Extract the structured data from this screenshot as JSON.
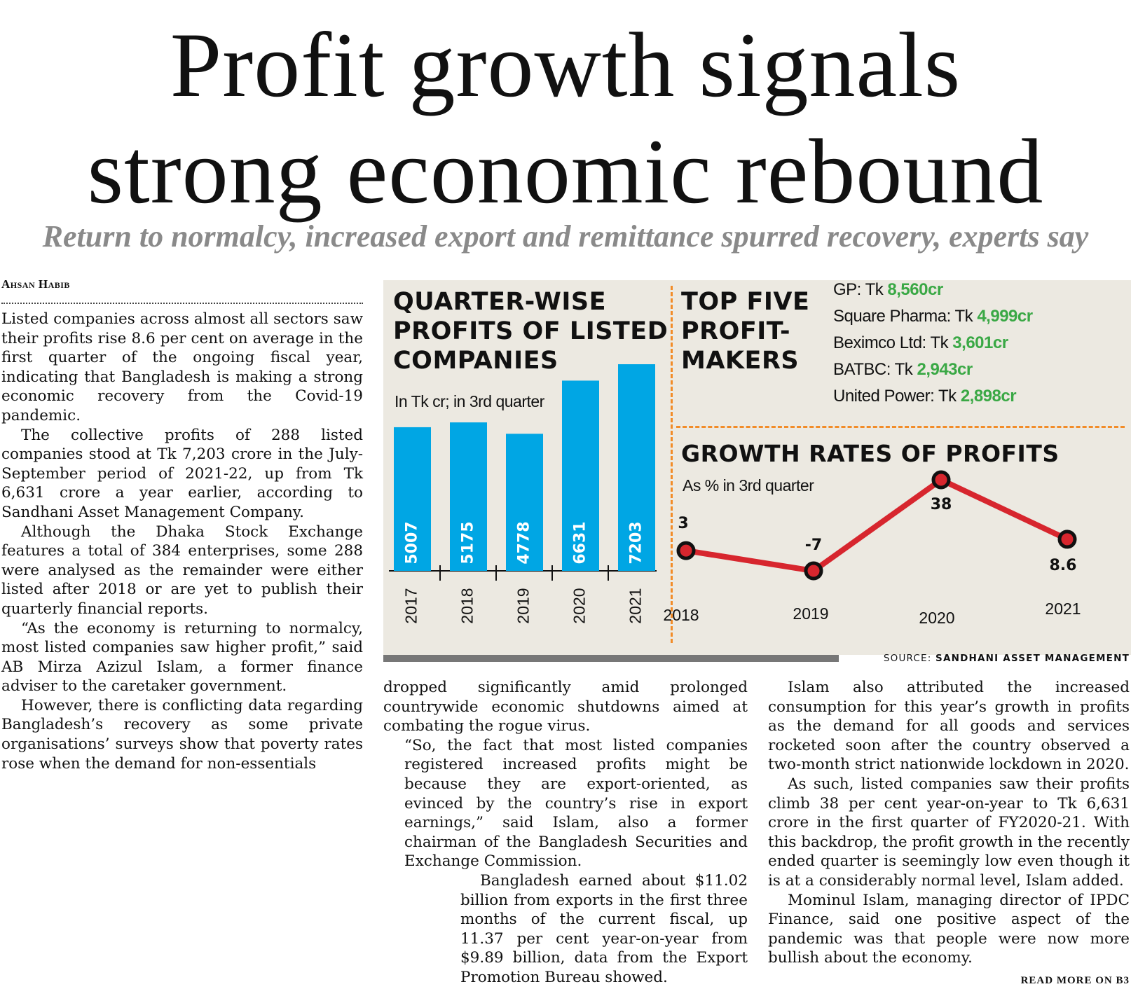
{
  "headline": {
    "line1": "Profit growth signals",
    "line2": "strong economic rebound",
    "deck": "Return to normalcy, increased export and remittance spurred recovery, experts say"
  },
  "byline": "Ahsan Habib",
  "body": {
    "col1": [
      "Listed companies across almost all sectors saw their profits rise 8.6 per cent on average in the first quarter of the ongoing fiscal year, indicating that Bangladesh is making a strong economic recovery from the Covid-19 pandemic.",
      "The collective profits of 288 listed companies stood at Tk 7,203 crore in the July-September period of 2021-22, up from Tk 6,631 crore a year earlier, according to Sandhani Asset Management Company.",
      "Although the Dhaka Stock Exchange features a total of 384 enterprises, some 288 were analysed as the remainder were either listed after 2018 or are yet to publish their quarterly financial reports.",
      "“As the economy is returning to normalcy, most listed companies saw higher profit,” said AB Mirza Azizul Islam, a former finance adviser to the caretaker government.",
      "However, there is conflicting data regarding Bangladesh’s recovery as some private organisations’ surveys show that poverty rates rose when the demand for non-essentials"
    ],
    "col2": [
      "dropped significantly amid prolonged countrywide economic shutdowns aimed at combating the rogue virus.",
      "“So, the fact that most listed companies registered increased profits might be because they are export-oriented, as evinced by the country’s rise in export earnings,” said Islam, also a former chairman of the Bangladesh Securities and Exchange Commission.",
      "Bangladesh earned about $11.02 billion from exports in the first three months of the current fiscal, up 11.37 per cent year-on-year from $9.89 billion, data from the Export Promotion Bureau showed."
    ],
    "col3": [
      "Islam also attributed the increased consumption for this year’s growth in profits as the demand for all goods and services rocketed soon after the country observed a two-month strict nationwide lockdown in 2020.",
      "As such, listed companies saw their profits climb 38 per cent year-on-year to Tk 6,631 crore in the first quarter of FY2020-21. With this backdrop, the profit growth in the recently ended quarter is seemingly low even though it is at a considerably normal level, Islam added.",
      "Mominul Islam, managing director of IPDC Finance, said one positive aspect of the pandemic was that people were now more bullish about the economy."
    ],
    "read_more": "READ MORE ON B3"
  },
  "infographic": {
    "quarter_title": "QUARTER-WISE PROFITS OF LISTED COMPANIES",
    "quarter_subtitle": "In Tk cr; in 3rd quarter",
    "top_title": "TOP FIVE PROFIT-MAKERS",
    "top_five": [
      {
        "label": "GP: Tk ",
        "value": "8,560cr"
      },
      {
        "label": "Square Pharma: Tk ",
        "value": "4,999cr"
      },
      {
        "label": "Beximco Ltd: Tk ",
        "value": "3,601cr"
      },
      {
        "label": "BATBC: Tk ",
        "value": "2,943cr"
      },
      {
        "label": "United Power: Tk ",
        "value": "2,898cr"
      }
    ],
    "growth_title": "GROWTH RATES OF PROFITS",
    "growth_subtitle": "As % in 3rd quarter",
    "source_label": "SOURCE: ",
    "source_name": "SANDHANI ASSET MANAGEMENT",
    "bar_color": "#00a6e4",
    "line_color": "#d7262e",
    "highlight_color": "#3aa845",
    "divider_color": "#f28c28"
  },
  "chart_data": [
    {
      "type": "bar",
      "title": "QUARTER-WISE PROFITS OF LISTED COMPANIES",
      "subtitle": "In Tk cr; in 3rd quarter",
      "categories": [
        "2017",
        "2018",
        "2019",
        "2020",
        "2021"
      ],
      "values": [
        5007,
        5175,
        4778,
        6631,
        7203
      ],
      "data_labels": [
        "5007",
        "5175",
        "4778",
        "6631",
        "7203"
      ]
    },
    {
      "type": "line",
      "title": "GROWTH RATES OF PROFITS",
      "subtitle": "As % in 3rd quarter",
      "x": [
        "2018",
        "2019",
        "2020",
        "2021"
      ],
      "y": [
        3,
        -7,
        38,
        8.6
      ],
      "data_labels": [
        "3",
        "-7",
        "38",
        "8.6"
      ]
    }
  ]
}
